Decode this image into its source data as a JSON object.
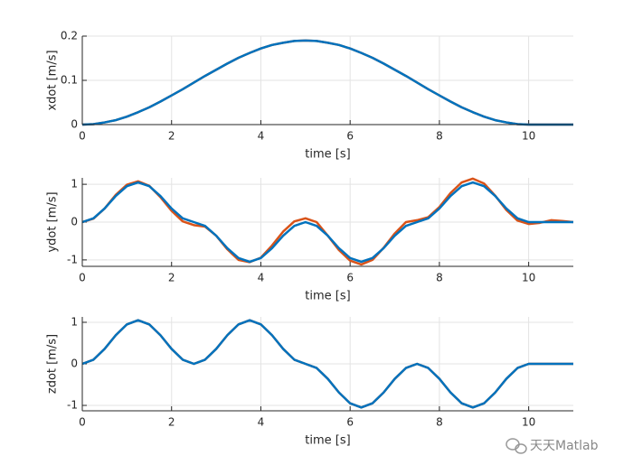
{
  "chart_data": [
    {
      "type": "line",
      "ylabel": "xdot [m/s]",
      "xlabel": "time [s]",
      "x": [
        0,
        0.25,
        0.5,
        0.75,
        1,
        1.25,
        1.5,
        1.75,
        2,
        2.25,
        2.5,
        2.75,
        3,
        3.25,
        3.5,
        3.75,
        4,
        4.25,
        4.5,
        4.75,
        5,
        5.25,
        5.5,
        5.75,
        6,
        6.25,
        6.5,
        6.75,
        7,
        7.25,
        7.5,
        7.75,
        8,
        8.25,
        8.5,
        8.75,
        9,
        9.25,
        9.5,
        9.75,
        10,
        10.25,
        10.5,
        10.75,
        11
      ],
      "series": [
        {
          "color": "#D95319",
          "values": [
            0,
            0.001,
            0.005,
            0.01,
            0.018,
            0.028,
            0.039,
            0.052,
            0.066,
            0.08,
            0.095,
            0.11,
            0.124,
            0.138,
            0.151,
            0.162,
            0.172,
            0.18,
            0.185,
            0.189,
            0.19,
            0.189,
            0.185,
            0.18,
            0.172,
            0.162,
            0.151,
            0.138,
            0.124,
            0.11,
            0.095,
            0.08,
            0.066,
            0.052,
            0.039,
            0.028,
            0.018,
            0.01,
            0.005,
            0.001,
            0,
            0,
            0,
            0,
            0
          ]
        },
        {
          "color": "#0072BD",
          "values": [
            0,
            0.001,
            0.005,
            0.01,
            0.018,
            0.028,
            0.039,
            0.052,
            0.066,
            0.08,
            0.095,
            0.11,
            0.124,
            0.138,
            0.151,
            0.162,
            0.172,
            0.18,
            0.185,
            0.189,
            0.19,
            0.189,
            0.185,
            0.18,
            0.172,
            0.162,
            0.151,
            0.138,
            0.124,
            0.11,
            0.095,
            0.08,
            0.066,
            0.052,
            0.039,
            0.028,
            0.018,
            0.01,
            0.005,
            0.001,
            0,
            0,
            0,
            0,
            0
          ]
        }
      ],
      "xlim": [
        0,
        11
      ],
      "xticks": [
        0,
        2,
        4,
        6,
        8,
        10
      ],
      "ylim": [
        0,
        0.2
      ],
      "yticks": [
        0,
        0.1,
        0.2
      ],
      "grid": true
    },
    {
      "type": "line",
      "ylabel": "ydot [m/s]",
      "xlabel": "time [s]",
      "x": [
        0,
        0.25,
        0.5,
        0.75,
        1,
        1.25,
        1.5,
        1.75,
        2,
        2.25,
        2.5,
        2.75,
        3,
        3.25,
        3.5,
        3.75,
        4,
        4.25,
        4.5,
        4.75,
        5,
        5.25,
        5.5,
        5.75,
        6,
        6.25,
        6.5,
        6.75,
        7,
        7.25,
        7.5,
        7.75,
        8,
        8.25,
        8.5,
        8.75,
        9,
        9.25,
        9.5,
        9.75,
        10,
        10.25,
        10.5,
        10.75,
        11
      ],
      "series": [
        {
          "color": "#D95319",
          "values": [
            0,
            0.09,
            0.36,
            0.72,
            0.99,
            1.08,
            0.96,
            0.66,
            0.3,
            0.02,
            -0.08,
            -0.12,
            -0.36,
            -0.72,
            -1.0,
            -1.06,
            -0.94,
            -0.62,
            -0.25,
            0.02,
            0.1,
            0.0,
            -0.36,
            -0.74,
            -1.02,
            -1.12,
            -1.0,
            -0.68,
            -0.3,
            0.0,
            0.05,
            0.13,
            0.4,
            0.77,
            1.05,
            1.15,
            1.02,
            0.7,
            0.32,
            0.04,
            -0.05,
            -0.02,
            0.05,
            0.03,
            0.0
          ]
        },
        {
          "color": "#0072BD",
          "values": [
            0,
            0.1,
            0.36,
            0.69,
            0.95,
            1.05,
            0.95,
            0.69,
            0.36,
            0.1,
            0,
            -0.1,
            -0.36,
            -0.69,
            -0.95,
            -1.05,
            -0.95,
            -0.69,
            -0.36,
            -0.1,
            0,
            -0.1,
            -0.36,
            -0.69,
            -0.95,
            -1.05,
            -0.95,
            -0.69,
            -0.36,
            -0.1,
            0,
            0.1,
            0.36,
            0.69,
            0.95,
            1.05,
            0.95,
            0.69,
            0.36,
            0.1,
            0,
            0,
            0,
            0,
            0
          ]
        }
      ],
      "xlim": [
        0,
        11
      ],
      "xticks": [
        0,
        2,
        4,
        6,
        8,
        10
      ],
      "ylim": [
        -1.17,
        1.17
      ],
      "yticks": [
        -1,
        0,
        1
      ],
      "grid": true
    },
    {
      "type": "line",
      "ylabel": "zdot [m/s]",
      "xlabel": "time [s]",
      "x": [
        0,
        0.25,
        0.5,
        0.75,
        1,
        1.25,
        1.5,
        1.75,
        2,
        2.25,
        2.5,
        2.75,
        3,
        3.25,
        3.5,
        3.75,
        4,
        4.25,
        4.5,
        4.75,
        5,
        5.25,
        5.5,
        5.75,
        6,
        6.25,
        6.5,
        6.75,
        7,
        7.25,
        7.5,
        7.75,
        8,
        8.25,
        8.5,
        8.75,
        9,
        9.25,
        9.5,
        9.75,
        10,
        10.25,
        10.5,
        10.75,
        11
      ],
      "series": [
        {
          "color": "#D95319",
          "values": [
            0,
            0.1,
            0.36,
            0.69,
            0.95,
            1.05,
            0.95,
            0.69,
            0.36,
            0.1,
            0,
            0.1,
            0.36,
            0.69,
            0.95,
            1.05,
            0.95,
            0.69,
            0.36,
            0.1,
            0,
            -0.1,
            -0.36,
            -0.69,
            -0.95,
            -1.05,
            -0.95,
            -0.69,
            -0.36,
            -0.1,
            0,
            -0.1,
            -0.36,
            -0.69,
            -0.95,
            -1.05,
            -0.95,
            -0.69,
            -0.36,
            -0.1,
            0,
            0,
            0,
            0,
            0
          ]
        },
        {
          "color": "#0072BD",
          "values": [
            0,
            0.1,
            0.36,
            0.69,
            0.95,
            1.05,
            0.95,
            0.69,
            0.36,
            0.1,
            0,
            0.1,
            0.36,
            0.69,
            0.95,
            1.05,
            0.95,
            0.69,
            0.36,
            0.1,
            0,
            -0.1,
            -0.36,
            -0.69,
            -0.95,
            -1.05,
            -0.95,
            -0.69,
            -0.36,
            -0.1,
            0,
            -0.1,
            -0.36,
            -0.69,
            -0.95,
            -1.05,
            -0.95,
            -0.69,
            -0.36,
            -0.1,
            0,
            0,
            0,
            0,
            0
          ]
        }
      ],
      "xlim": [
        0,
        11
      ],
      "xticks": [
        0,
        2,
        4,
        6,
        8,
        10
      ],
      "ylim": [
        -1.13,
        1.13
      ],
      "yticks": [
        -1,
        0,
        1
      ],
      "grid": true
    }
  ],
  "watermark": "天天Matlab"
}
